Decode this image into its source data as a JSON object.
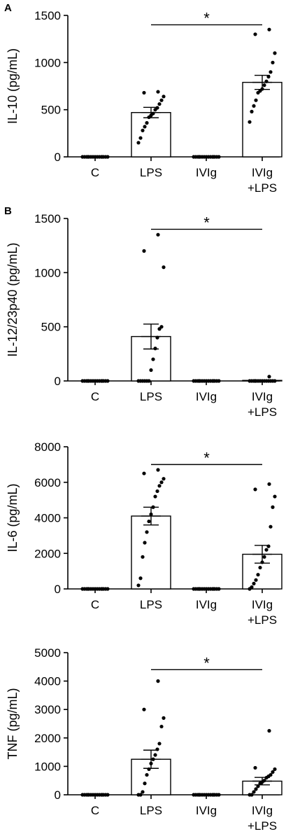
{
  "chart_data": [
    {
      "type": "bar",
      "panel": "A",
      "ylabel": "IL-10 (pg/mL)",
      "ylim": [
        0,
        1500
      ],
      "yticks": [
        0,
        500,
        1000,
        1500
      ],
      "categories": [
        [
          "C"
        ],
        [
          "LPS"
        ],
        [
          "IVIg"
        ],
        [
          "IVIg",
          "+LPS"
        ]
      ],
      "means": [
        0,
        470,
        0,
        790
      ],
      "sem": [
        0,
        55,
        0,
        75
      ],
      "points": [
        [
          0,
          0,
          0,
          0,
          0,
          0,
          0,
          0,
          0,
          0,
          0,
          0,
          0,
          0,
          0
        ],
        [
          150,
          200,
          280,
          320,
          360,
          420,
          440,
          460,
          500,
          520,
          560,
          600,
          640,
          680,
          690
        ],
        [
          0,
          0,
          0,
          0,
          0,
          0,
          0,
          0,
          0,
          0,
          0,
          0,
          0,
          0,
          0
        ],
        [
          370,
          480,
          540,
          600,
          680,
          700,
          720,
          760,
          800,
          850,
          900,
          1000,
          1100,
          1300,
          1350
        ]
      ],
      "significance": {
        "from": 1,
        "to": 3,
        "label": "*",
        "y": 1400
      }
    },
    {
      "type": "bar",
      "panel": "B",
      "ylabel": "IL-12/23p40 (pg/mL)",
      "ylim": [
        0,
        1500
      ],
      "yticks": [
        0,
        500,
        1000,
        1500
      ],
      "categories": [
        [
          "C"
        ],
        [
          "LPS"
        ],
        [
          "IVIg"
        ],
        [
          "IVIg",
          "+LPS"
        ]
      ],
      "means": [
        0,
        410,
        0,
        5
      ],
      "sem": [
        0,
        115,
        0,
        3
      ],
      "points": [
        [
          0,
          0,
          0,
          0,
          0,
          0,
          0,
          0,
          0,
          0,
          0,
          0,
          0,
          0,
          0
        ],
        [
          0,
          0,
          0,
          0,
          0,
          0,
          100,
          200,
          300,
          400,
          480,
          500,
          1050,
          1200,
          1350
        ],
        [
          0,
          0,
          0,
          0,
          0,
          0,
          0,
          0,
          0,
          0,
          0,
          0,
          0,
          0,
          0
        ],
        [
          0,
          0,
          0,
          0,
          0,
          0,
          0,
          0,
          0,
          0,
          0,
          0,
          0,
          0,
          40
        ]
      ],
      "significance": {
        "from": 1,
        "to": 3,
        "label": "*",
        "y": 1400
      }
    },
    {
      "type": "bar",
      "panel": "",
      "ylabel": "IL-6 (pg/mL)",
      "ylim": [
        0,
        8000
      ],
      "yticks": [
        0,
        2000,
        4000,
        6000,
        8000
      ],
      "categories": [
        [
          "C"
        ],
        [
          "LPS"
        ],
        [
          "IVIg"
        ],
        [
          "IVIg",
          "+LPS"
        ]
      ],
      "means": [
        0,
        4100,
        0,
        1950
      ],
      "sem": [
        0,
        500,
        0,
        500
      ],
      "points": [
        [
          0,
          0,
          0,
          0,
          0,
          0,
          0,
          0,
          0,
          0,
          0,
          0,
          0,
          0,
          0
        ],
        [
          200,
          600,
          1800,
          2600,
          3200,
          3800,
          4200,
          4600,
          5200,
          5500,
          5800,
          6000,
          6200,
          6500,
          6700
        ],
        [
          0,
          0,
          0,
          0,
          0,
          0,
          0,
          0,
          0,
          0,
          0,
          0,
          0,
          0,
          0
        ],
        [
          0,
          100,
          300,
          500,
          800,
          1200,
          1500,
          1800,
          2200,
          2400,
          3500,
          4600,
          5200,
          5600,
          5900
        ]
      ],
      "significance": {
        "from": 1,
        "to": 3,
        "label": "*",
        "y": 7000
      }
    },
    {
      "type": "bar",
      "panel": "",
      "ylabel": "TNF (pg/mL)",
      "ylim": [
        0,
        5000
      ],
      "yticks": [
        0,
        1000,
        2000,
        3000,
        4000,
        5000
      ],
      "categories": [
        [
          "C"
        ],
        [
          "LPS"
        ],
        [
          "IVIg"
        ],
        [
          "IVIg",
          "+LPS"
        ]
      ],
      "means": [
        0,
        1250,
        0,
        480
      ],
      "sem": [
        0,
        320,
        0,
        130
      ],
      "points": [
        [
          0,
          0,
          0,
          0,
          0,
          0,
          0,
          0,
          0,
          0,
          0,
          0,
          0,
          0,
          0
        ],
        [
          0,
          0,
          100,
          400,
          700,
          900,
          1100,
          1250,
          1400,
          1600,
          1800,
          2400,
          2700,
          3000,
          4000
        ],
        [
          0,
          0,
          0,
          0,
          0,
          0,
          0,
          0,
          0,
          0,
          0,
          0,
          0,
          0,
          0
        ],
        [
          0,
          0,
          100,
          200,
          300,
          400,
          450,
          500,
          600,
          650,
          700,
          800,
          900,
          950,
          2250
        ]
      ],
      "significance": {
        "from": 1,
        "to": 3,
        "label": "*",
        "y": 4400
      }
    }
  ]
}
